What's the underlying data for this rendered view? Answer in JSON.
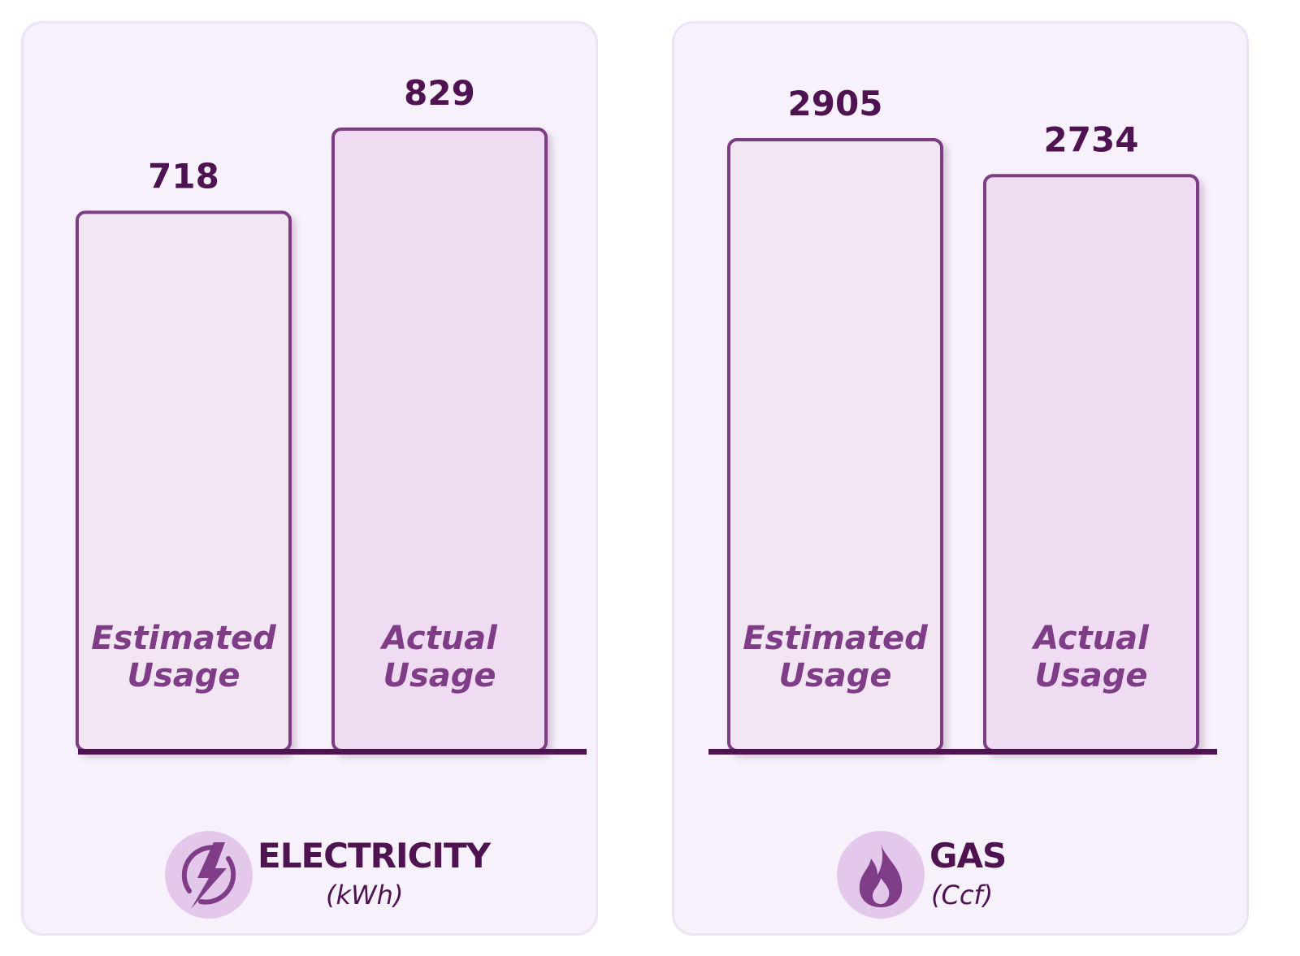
{
  "chart_data": [
    {
      "type": "bar",
      "categories": [
        "Estimated Usage",
        "Actual Usage"
      ],
      "category_lines": [
        [
          "Estimated",
          "Usage"
        ],
        [
          "Actual",
          "Usage"
        ]
      ],
      "values": [
        718,
        829
      ],
      "label": "ELECTRICITY",
      "unit": "(kWh)",
      "icon": "lightning-bolt-icon"
    },
    {
      "type": "bar",
      "categories": [
        "Estimated Usage",
        "Actual Usage"
      ],
      "category_lines": [
        [
          "Estimated",
          "Usage"
        ],
        [
          "Actual",
          "Usage"
        ]
      ],
      "values": [
        2905,
        2734
      ],
      "label": "GAS",
      "unit": "(Ccf)",
      "icon": "flame-icon"
    }
  ],
  "colors": {
    "panel_background": "#f6f1fa",
    "estimated_fill": "#f2e6f3",
    "actual_fill": "#efdcf2",
    "bar_stroke": "#7c3c82",
    "baseline": "#4f1352",
    "value_text": "#4f1352",
    "category_text": "#7e3d86",
    "icon_disc": "#e3c8ec",
    "icon": "#7e3d86"
  }
}
